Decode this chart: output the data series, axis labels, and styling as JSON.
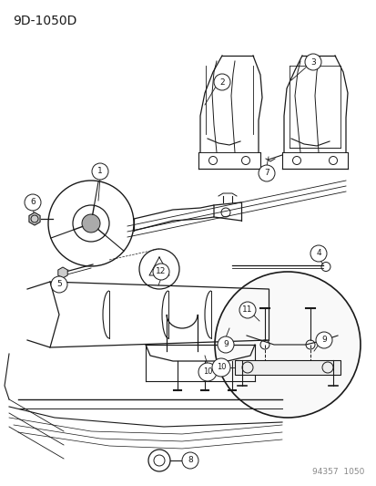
{
  "title": "9D-1050D",
  "footer": "94357  1050",
  "bg_color": "#ffffff",
  "line_color": "#1a1a1a",
  "text_color": "#1a1a1a",
  "gray_color": "#888888",
  "fig_width": 4.14,
  "fig_height": 5.33,
  "dpi": 100
}
